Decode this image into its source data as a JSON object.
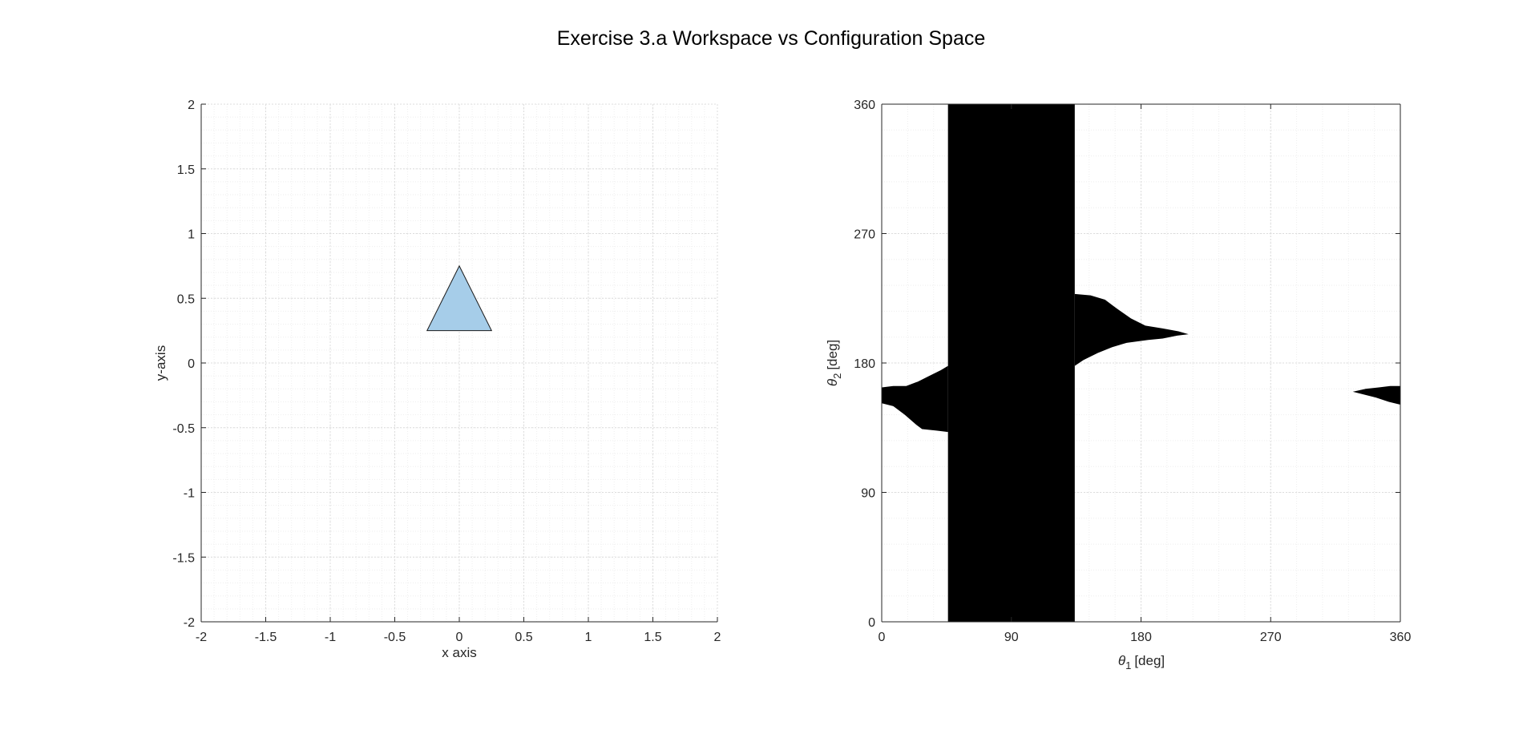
{
  "figure": {
    "title": "Exercise 3.a Workspace vs Configuration Space"
  },
  "chart_data": [
    {
      "id": "workspace",
      "type": "scatter",
      "xlabel": "x axis",
      "ylabel": "y-axis",
      "xlim": [
        -2,
        2
      ],
      "ylim": [
        -2,
        2
      ],
      "xticks": [
        -2,
        -1.5,
        -1,
        -0.5,
        0,
        0.5,
        1,
        1.5,
        2
      ],
      "yticks": [
        -2,
        -1.5,
        -1,
        -0.5,
        0,
        0.5,
        1,
        1.5,
        2
      ],
      "xtick_labels": [
        "-2",
        "-1.5",
        "-1",
        "-0.5",
        "0",
        "0.5",
        "1",
        "1.5",
        "2"
      ],
      "ytick_labels": [
        "-2",
        "-1.5",
        "-1",
        "-0.5",
        "0",
        "0.5",
        "1",
        "1.5",
        "2"
      ],
      "minor_step": 0.1,
      "grid": true,
      "obstacle": {
        "vertices": [
          [
            -0.25,
            0.25
          ],
          [
            0.25,
            0.25
          ],
          [
            0,
            0.75
          ]
        ],
        "fill": "#a6cde9",
        "stroke": "#1a1a1a"
      }
    },
    {
      "id": "configuration-space",
      "type": "heatmap",
      "xlabel_symbol": "θ",
      "xlabel_sub": "1",
      "xlabel_unit": "[deg]",
      "ylabel_symbol": "θ",
      "ylabel_sub": "2",
      "ylabel_unit": "[deg]",
      "xlim": [
        0,
        360
      ],
      "ylim": [
        0,
        360
      ],
      "xticks": [
        0,
        90,
        180,
        270,
        360
      ],
      "yticks": [
        0,
        90,
        180,
        270,
        360
      ],
      "xtick_labels": [
        "0",
        "90",
        "180",
        "270",
        "360"
      ],
      "ytick_labels": [
        "0",
        "90",
        "180",
        "270",
        "360"
      ],
      "minor_step": 18,
      "grid": true,
      "collision_color": "#000000",
      "free_color": "#ffffff",
      "collision_regions": [
        {
          "name": "theta1-band",
          "polygon": [
            [
              46,
              0
            ],
            [
              134,
              0
            ],
            [
              134,
              360
            ],
            [
              46,
              360
            ]
          ]
        },
        {
          "name": "left-lobe",
          "polygon": [
            [
              0,
              163
            ],
            [
              8,
              164
            ],
            [
              17,
              164
            ],
            [
              25,
              167
            ],
            [
              33,
              171
            ],
            [
              41,
              175
            ],
            [
              46,
              178
            ],
            [
              46,
              132
            ],
            [
              38,
              133
            ],
            [
              28,
              134
            ],
            [
              24,
              137
            ],
            [
              16,
              144
            ],
            [
              8,
              150
            ],
            [
              0,
              152
            ]
          ]
        },
        {
          "name": "middle-lobe",
          "polygon": [
            [
              134,
              228
            ],
            [
              145,
              227
            ],
            [
              155,
              224
            ],
            [
              163,
              218
            ],
            [
              173,
              211
            ],
            [
              183,
              206
            ],
            [
              195,
              204
            ],
            [
              206,
              202
            ],
            [
              213,
              200
            ],
            [
              205,
              199
            ],
            [
              195,
              197
            ],
            [
              185,
              196
            ],
            [
              170,
              194
            ],
            [
              160,
              191
            ],
            [
              150,
              187
            ],
            [
              140,
              182
            ],
            [
              134,
              178
            ]
          ]
        },
        {
          "name": "right-lobe",
          "polygon": [
            [
              327,
              160
            ],
            [
              336,
              162
            ],
            [
              345,
              163
            ],
            [
              353,
              164
            ],
            [
              360,
              164
            ],
            [
              360,
              151
            ],
            [
              352,
              153
            ],
            [
              343,
              156
            ],
            [
              335,
              158
            ]
          ]
        }
      ]
    }
  ]
}
